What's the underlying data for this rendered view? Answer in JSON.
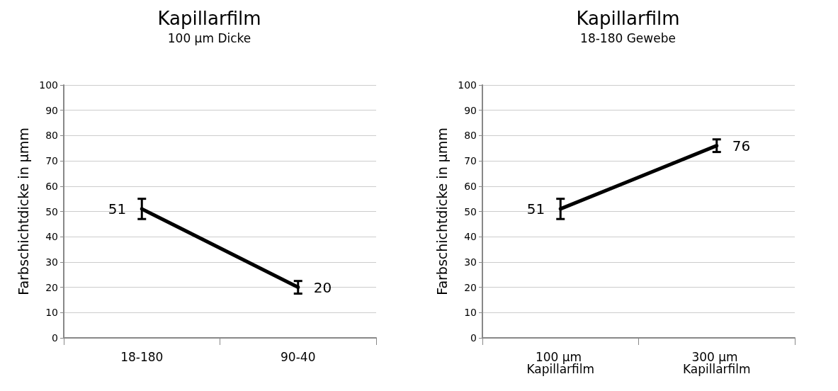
{
  "chart_data": [
    {
      "type": "line",
      "title": "Kapillarfilm",
      "subtitle": "100 µm Dicke",
      "ylabel": "Farbschichtdicke in µmm",
      "categories": [
        "18-180",
        "90-40"
      ],
      "series": [
        {
          "color": "#000000",
          "values": [
            51,
            20
          ],
          "errors": [
            4,
            2.5
          ]
        }
      ],
      "ylim": [
        0,
        100
      ],
      "yticks": [
        0,
        10,
        20,
        30,
        40,
        50,
        60,
        70,
        80,
        90,
        100
      ],
      "grid": "y",
      "marker": "none",
      "line_style": "solid",
      "data_labels": true
    },
    {
      "type": "line",
      "title": "Kapillarfilm",
      "subtitle": "18-180 Gewebe",
      "ylabel": "Farbschichtdicke in µmm",
      "categories": [
        "100 µm Kapillarfilm",
        "300 µm Kapillarfilm"
      ],
      "series": [
        {
          "color": "#000000",
          "values": [
            51,
            76
          ],
          "errors": [
            4,
            2.5
          ]
        }
      ],
      "ylim": [
        0,
        100
      ],
      "yticks": [
        0,
        10,
        20,
        30,
        40,
        50,
        60,
        70,
        80,
        90,
        100
      ],
      "grid": "y",
      "marker": "none",
      "line_style": "solid",
      "data_labels": true
    }
  ]
}
